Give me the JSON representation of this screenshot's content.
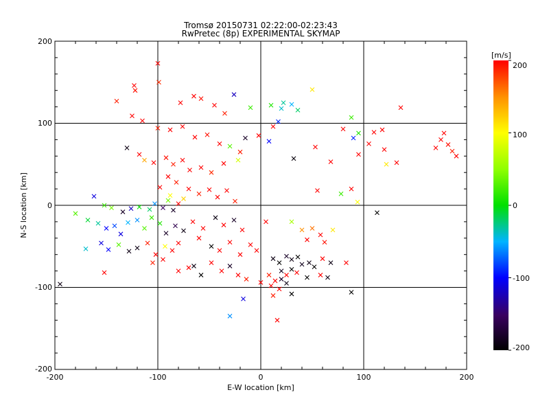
{
  "chart_data": {
    "type": "scatter",
    "title": "Tromsø 20150731 02:22:00-02:23:43",
    "subtitle": "RwPretec (8p) EXPERIMENTAL SKYMAP",
    "xlabel": "E-W location [km]",
    "ylabel": "N-S location [km]",
    "xlim": [
      -200,
      200
    ],
    "ylim": [
      -200,
      200
    ],
    "x_ticks": [
      "-200",
      "-100",
      "0",
      "100",
      "200"
    ],
    "y_ticks": [
      "-200",
      "-100",
      "0",
      "100",
      "200"
    ],
    "gridlines": [
      -100,
      0,
      100
    ],
    "colorbar": {
      "label": "[m/s]",
      "range": [
        -200,
        200
      ],
      "ticks": [
        "200",
        "100",
        "0",
        "-100",
        "-200"
      ]
    },
    "markers": {
      "cross": "x",
      "dot": "."
    },
    "points": [
      {
        "x": -140,
        "y": 127,
        "v": 190,
        "m": "x"
      },
      {
        "x": -123,
        "y": 146,
        "v": 200,
        "m": "x"
      },
      {
        "x": -122,
        "y": 140,
        "v": 195,
        "m": "x"
      },
      {
        "x": -100,
        "y": 173,
        "v": 200,
        "m": "x"
      },
      {
        "x": -99,
        "y": 150,
        "v": 185,
        "m": "x"
      },
      {
        "x": -78,
        "y": 125,
        "v": 200,
        "m": "x"
      },
      {
        "x": -65,
        "y": 133,
        "v": 200,
        "m": "x"
      },
      {
        "x": -58,
        "y": 130,
        "v": 195,
        "m": "x"
      },
      {
        "x": -45,
        "y": 122,
        "v": 200,
        "m": "x"
      },
      {
        "x": -35,
        "y": 112,
        "v": 190,
        "m": "x"
      },
      {
        "x": -26,
        "y": 135,
        "v": -120,
        "m": "x"
      },
      {
        "x": -10,
        "y": 119,
        "v": 20,
        "m": "x"
      },
      {
        "x": 10,
        "y": 122,
        "v": 10,
        "m": "x"
      },
      {
        "x": 20,
        "y": 118,
        "v": -40,
        "m": "x"
      },
      {
        "x": 22,
        "y": 125,
        "v": -30,
        "m": "x"
      },
      {
        "x": 30,
        "y": 123,
        "v": -50,
        "m": "x"
      },
      {
        "x": 50,
        "y": 141,
        "v": 110,
        "m": "x"
      },
      {
        "x": 36,
        "y": 116,
        "v": -20,
        "m": "x"
      },
      {
        "x": 88,
        "y": 107,
        "v": 20,
        "m": "x"
      },
      {
        "x": 136,
        "y": 119,
        "v": 200,
        "m": "x"
      },
      {
        "x": 80,
        "y": 93,
        "v": 200,
        "m": "x"
      },
      {
        "x": 95,
        "y": 88,
        "v": 10,
        "m": "x"
      },
      {
        "x": 110,
        "y": 89,
        "v": 200,
        "m": "x"
      },
      {
        "x": 118,
        "y": 92,
        "v": 200,
        "m": "x"
      },
      {
        "x": 105,
        "y": 75,
        "v": 200,
        "m": "x"
      },
      {
        "x": 120,
        "y": 68,
        "v": 200,
        "m": "x"
      },
      {
        "x": 132,
        "y": 52,
        "v": 200,
        "m": "x"
      },
      {
        "x": 90,
        "y": 82,
        "v": -90,
        "m": "x"
      },
      {
        "x": -125,
        "y": 109,
        "v": 200,
        "m": "x"
      },
      {
        "x": -115,
        "y": 103,
        "v": 200,
        "m": "x"
      },
      {
        "x": -100,
        "y": 94,
        "v": 190,
        "m": "x"
      },
      {
        "x": -88,
        "y": 92,
        "v": 200,
        "m": "x"
      },
      {
        "x": -76,
        "y": 96,
        "v": 200,
        "m": "x"
      },
      {
        "x": -64,
        "y": 83,
        "v": 200,
        "m": "x"
      },
      {
        "x": -52,
        "y": 86,
        "v": 195,
        "m": "x"
      },
      {
        "x": -40,
        "y": 75,
        "v": 200,
        "m": "x"
      },
      {
        "x": -30,
        "y": 72,
        "v": 30,
        "m": "x"
      },
      {
        "x": -20,
        "y": 65,
        "v": 190,
        "m": "x"
      },
      {
        "x": -15,
        "y": 82,
        "v": -180,
        "m": "x"
      },
      {
        "x": -2,
        "y": 85,
        "v": 200,
        "m": "x"
      },
      {
        "x": 8,
        "y": 78,
        "v": -100,
        "m": "x"
      },
      {
        "x": 17,
        "y": 102,
        "v": -90,
        "m": "x"
      },
      {
        "x": 12,
        "y": 96,
        "v": 200,
        "m": "x"
      },
      {
        "x": -130,
        "y": 70,
        "v": -190,
        "m": "x"
      },
      {
        "x": -118,
        "y": 62,
        "v": 200,
        "m": "x"
      },
      {
        "x": -113,
        "y": 55,
        "v": 140,
        "m": "x"
      },
      {
        "x": -104,
        "y": 52,
        "v": 200,
        "m": "x"
      },
      {
        "x": -92,
        "y": 58,
        "v": 195,
        "m": "x"
      },
      {
        "x": -85,
        "y": 50,
        "v": 190,
        "m": "x"
      },
      {
        "x": -76,
        "y": 55,
        "v": 200,
        "m": "x"
      },
      {
        "x": -69,
        "y": 43,
        "v": 200,
        "m": "x"
      },
      {
        "x": -58,
        "y": 46,
        "v": 200,
        "m": "x"
      },
      {
        "x": -48,
        "y": 40,
        "v": 185,
        "m": "x"
      },
      {
        "x": -36,
        "y": 51,
        "v": 200,
        "m": "x"
      },
      {
        "x": -22,
        "y": 55,
        "v": 80,
        "m": "x"
      },
      {
        "x": 32,
        "y": 57,
        "v": -195,
        "m": "x"
      },
      {
        "x": 53,
        "y": 71,
        "v": 200,
        "m": "x"
      },
      {
        "x": 68,
        "y": 53,
        "v": 200,
        "m": "x"
      },
      {
        "x": 95,
        "y": 62,
        "v": 200,
        "m": "x"
      },
      {
        "x": 122,
        "y": 50,
        "v": 110,
        "m": "x"
      },
      {
        "x": -98,
        "y": 22,
        "v": 200,
        "m": "x"
      },
      {
        "x": -90,
        "y": 35,
        "v": 200,
        "m": "x"
      },
      {
        "x": -82,
        "y": 28,
        "v": 190,
        "m": "x"
      },
      {
        "x": -70,
        "y": 20,
        "v": 200,
        "m": "x"
      },
      {
        "x": -60,
        "y": 14,
        "v": 190,
        "m": "x"
      },
      {
        "x": -50,
        "y": 19,
        "v": 200,
        "m": "x"
      },
      {
        "x": -42,
        "y": 10,
        "v": 200,
        "m": "x"
      },
      {
        "x": -33,
        "y": 18,
        "v": 200,
        "m": "x"
      },
      {
        "x": -25,
        "y": 5,
        "v": 190,
        "m": "x"
      },
      {
        "x": -88,
        "y": 12,
        "v": 100,
        "m": "x"
      },
      {
        "x": -80,
        "y": 2,
        "v": 200,
        "m": "x"
      },
      {
        "x": -75,
        "y": 8,
        "v": 120,
        "m": "x"
      },
      {
        "x": -90,
        "y": 6,
        "v": 40,
        "m": "x"
      },
      {
        "x": 55,
        "y": 18,
        "v": 200,
        "m": "x"
      },
      {
        "x": 78,
        "y": 14,
        "v": 20,
        "m": "x"
      },
      {
        "x": 94,
        "y": 4,
        "v": 100,
        "m": "x"
      },
      {
        "x": 113,
        "y": -9,
        "v": -200,
        "m": "x"
      },
      {
        "x": 88,
        "y": 20,
        "v": 200,
        "m": "x"
      },
      {
        "x": -162,
        "y": 11,
        "v": -110,
        "m": "x"
      },
      {
        "x": -152,
        "y": 0,
        "v": 20,
        "m": "x"
      },
      {
        "x": -145,
        "y": -3,
        "v": 40,
        "m": "x"
      },
      {
        "x": -134,
        "y": -8,
        "v": -180,
        "m": "x"
      },
      {
        "x": -126,
        "y": -4,
        "v": -120,
        "m": "x"
      },
      {
        "x": -118,
        "y": -2,
        "v": 0,
        "m": "x"
      },
      {
        "x": -108,
        "y": -5,
        "v": -20,
        "m": "x"
      },
      {
        "x": -103,
        "y": 2,
        "v": -60,
        "m": "x"
      },
      {
        "x": -95,
        "y": -3,
        "v": -150,
        "m": "x"
      },
      {
        "x": -85,
        "y": -6,
        "v": -180,
        "m": "x"
      },
      {
        "x": -180,
        "y": -10,
        "v": 30,
        "m": "x"
      },
      {
        "x": -168,
        "y": -18,
        "v": -10,
        "m": "x"
      },
      {
        "x": -158,
        "y": -22,
        "v": -30,
        "m": "x"
      },
      {
        "x": -150,
        "y": -28,
        "v": -100,
        "m": "x"
      },
      {
        "x": -142,
        "y": -25,
        "v": -80,
        "m": "x"
      },
      {
        "x": -136,
        "y": -35,
        "v": -110,
        "m": "x"
      },
      {
        "x": -129,
        "y": -21,
        "v": -50,
        "m": "x"
      },
      {
        "x": -120,
        "y": -18,
        "v": -60,
        "m": "x"
      },
      {
        "x": -113,
        "y": -28,
        "v": 30,
        "m": "x"
      },
      {
        "x": -106,
        "y": -15,
        "v": 20,
        "m": "x"
      },
      {
        "x": -98,
        "y": -22,
        "v": 10,
        "m": "x"
      },
      {
        "x": -92,
        "y": -34,
        "v": -180,
        "m": "x"
      },
      {
        "x": -83,
        "y": -25,
        "v": -160,
        "m": "x"
      },
      {
        "x": -75,
        "y": -31,
        "v": -190,
        "m": "x"
      },
      {
        "x": -170,
        "y": -53,
        "v": -40,
        "m": "x"
      },
      {
        "x": -155,
        "y": -46,
        "v": -110,
        "m": "x"
      },
      {
        "x": -148,
        "y": -54,
        "v": -100,
        "m": "x"
      },
      {
        "x": -138,
        "y": -48,
        "v": 30,
        "m": "x"
      },
      {
        "x": -128,
        "y": -56,
        "v": -190,
        "m": "x"
      },
      {
        "x": -120,
        "y": -52,
        "v": -190,
        "m": "x"
      },
      {
        "x": -110,
        "y": -46,
        "v": 190,
        "m": "x"
      },
      {
        "x": -102,
        "y": -60,
        "v": 200,
        "m": "x"
      },
      {
        "x": -93,
        "y": -50,
        "v": 100,
        "m": "x"
      },
      {
        "x": -86,
        "y": -55,
        "v": 200,
        "m": "x"
      },
      {
        "x": -80,
        "y": -46,
        "v": 200,
        "m": "x"
      },
      {
        "x": -66,
        "y": -20,
        "v": 200,
        "m": "x"
      },
      {
        "x": -56,
        "y": -28,
        "v": 200,
        "m": "x"
      },
      {
        "x": -44,
        "y": -15,
        "v": -190,
        "m": "x"
      },
      {
        "x": -36,
        "y": -24,
        "v": 200,
        "m": "x"
      },
      {
        "x": -26,
        "y": -18,
        "v": -180,
        "m": "x"
      },
      {
        "x": -18,
        "y": -30,
        "v": 200,
        "m": "x"
      },
      {
        "x": -60,
        "y": -40,
        "v": 200,
        "m": "x"
      },
      {
        "x": -48,
        "y": -50,
        "v": -200,
        "m": "x"
      },
      {
        "x": -40,
        "y": -55,
        "v": 200,
        "m": "x"
      },
      {
        "x": -30,
        "y": -45,
        "v": 200,
        "m": "x"
      },
      {
        "x": -20,
        "y": -60,
        "v": 200,
        "m": "x"
      },
      {
        "x": -10,
        "y": -48,
        "v": 200,
        "m": "x"
      },
      {
        "x": -4,
        "y": -55,
        "v": 200,
        "m": "x"
      },
      {
        "x": 5,
        "y": -20,
        "v": 200,
        "m": "x"
      },
      {
        "x": -152,
        "y": -82,
        "v": 200,
        "m": "x"
      },
      {
        "x": -105,
        "y": -70,
        "v": 190,
        "m": "x"
      },
      {
        "x": -95,
        "y": -66,
        "v": 200,
        "m": "x"
      },
      {
        "x": -80,
        "y": -80,
        "v": 200,
        "m": "x"
      },
      {
        "x": -70,
        "y": -76,
        "v": 200,
        "m": "x"
      },
      {
        "x": -58,
        "y": -85,
        "v": -200,
        "m": "x"
      },
      {
        "x": -65,
        "y": -74,
        "v": -190,
        "m": "x"
      },
      {
        "x": -48,
        "y": -70,
        "v": 200,
        "m": "x"
      },
      {
        "x": -38,
        "y": -80,
        "v": 200,
        "m": "x"
      },
      {
        "x": -30,
        "y": -74,
        "v": -180,
        "m": "x"
      },
      {
        "x": -22,
        "y": -85,
        "v": 200,
        "m": "x"
      },
      {
        "x": -14,
        "y": -90,
        "v": 190,
        "m": "x"
      },
      {
        "x": -30,
        "y": -135,
        "v": -60,
        "m": "x"
      },
      {
        "x": -17,
        "y": -114,
        "v": -110,
        "m": "x"
      },
      {
        "x": -195,
        "y": -96,
        "v": -190,
        "m": "x"
      },
      {
        "x": 12,
        "y": -65,
        "v": -190,
        "m": "x"
      },
      {
        "x": 18,
        "y": -70,
        "v": -200,
        "m": "x"
      },
      {
        "x": 25,
        "y": -62,
        "v": -180,
        "m": "x"
      },
      {
        "x": 30,
        "y": -66,
        "v": -190,
        "m": "x"
      },
      {
        "x": 36,
        "y": -63,
        "v": -200,
        "m": "x"
      },
      {
        "x": 40,
        "y": -72,
        "v": -185,
        "m": "x"
      },
      {
        "x": 47,
        "y": -70,
        "v": -190,
        "m": "x"
      },
      {
        "x": 52,
        "y": -75,
        "v": -200,
        "m": "x"
      },
      {
        "x": 60,
        "y": -65,
        "v": 200,
        "m": "x"
      },
      {
        "x": 68,
        "y": -70,
        "v": -190,
        "m": "x"
      },
      {
        "x": 30,
        "y": -78,
        "v": -200,
        "m": "x"
      },
      {
        "x": 20,
        "y": -80,
        "v": -185,
        "m": "x"
      },
      {
        "x": 8,
        "y": -85,
        "v": 190,
        "m": "x"
      },
      {
        "x": 14,
        "y": -92,
        "v": 200,
        "m": "x"
      },
      {
        "x": 20,
        "y": -90,
        "v": -180,
        "m": "x"
      },
      {
        "x": 25,
        "y": -85,
        "v": 200,
        "m": "x"
      },
      {
        "x": 35,
        "y": -82,
        "v": 200,
        "m": "x"
      },
      {
        "x": 45,
        "y": -88,
        "v": -200,
        "m": "x"
      },
      {
        "x": 58,
        "y": -85,
        "v": 200,
        "m": "x"
      },
      {
        "x": 65,
        "y": -88,
        "v": -190,
        "m": "x"
      },
      {
        "x": 83,
        "y": -70,
        "v": 200,
        "m": "x"
      },
      {
        "x": 0,
        "y": -94,
        "v": 200,
        "m": "x"
      },
      {
        "x": 10,
        "y": -98,
        "v": 200,
        "m": "x"
      },
      {
        "x": 18,
        "y": -102,
        "v": 200,
        "m": "x"
      },
      {
        "x": 25,
        "y": -95,
        "v": -190,
        "m": "x"
      },
      {
        "x": 12,
        "y": -110,
        "v": 190,
        "m": "x"
      },
      {
        "x": 30,
        "y": -108,
        "v": -200,
        "m": "x"
      },
      {
        "x": 16,
        "y": -140,
        "v": 200,
        "m": "x"
      },
      {
        "x": 88,
        "y": -106,
        "v": -200,
        "m": "x"
      },
      {
        "x": 40,
        "y": -30,
        "v": 150,
        "m": "x"
      },
      {
        "x": 50,
        "y": -28,
        "v": 160,
        "m": "x"
      },
      {
        "x": 58,
        "y": -36,
        "v": 200,
        "m": "x"
      },
      {
        "x": 62,
        "y": -45,
        "v": 195,
        "m": "x"
      },
      {
        "x": 70,
        "y": -30,
        "v": 110,
        "m": "x"
      },
      {
        "x": 45,
        "y": -42,
        "v": 200,
        "m": "x"
      },
      {
        "x": 30,
        "y": -20,
        "v": 60,
        "m": "x"
      },
      {
        "x": 175,
        "y": 80,
        "v": 200,
        "m": "x"
      },
      {
        "x": 182,
        "y": 74,
        "v": 195,
        "m": "x"
      },
      {
        "x": 170,
        "y": 70,
        "v": 200,
        "m": "x"
      },
      {
        "x": 186,
        "y": 66,
        "v": 190,
        "m": "x"
      },
      {
        "x": 178,
        "y": 88,
        "v": 200,
        "m": "x"
      },
      {
        "x": 190,
        "y": 60,
        "v": 200,
        "m": "x"
      }
    ]
  }
}
